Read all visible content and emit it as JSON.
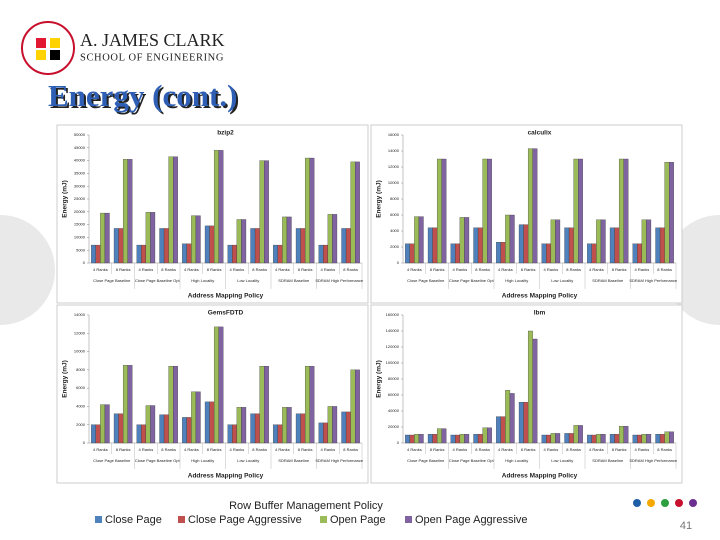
{
  "header": {
    "line1": "A. JAMES CLARK",
    "line2": "SCHOOL OF ENGINEERING"
  },
  "title": "Energy (cont.)",
  "legend": {
    "title": "Row Buffer Management Policy",
    "entries": [
      {
        "name": "Close Page",
        "color": "#4f81bd"
      },
      {
        "name": "Close Page Aggressive",
        "color": "#c0504d"
      },
      {
        "name": "Open Page",
        "color": "#9bbb59"
      },
      {
        "name": "Open Page Aggressive",
        "color": "#8064a2"
      }
    ]
  },
  "page_number": "41",
  "chart_data": [
    {
      "type": "bar",
      "title": "bzip2",
      "x_label": "Address Mapping Policy",
      "y_label": "Energy (mJ)",
      "categories": [
        "4 Ranks",
        "8 Ranks",
        "4 Ranks",
        "8 Ranks",
        "4 Ranks",
        "8 Ranks",
        "4 Ranks",
        "8 Ranks",
        "4 Ranks",
        "8 Ranks",
        "4 Ranks",
        "8 Ranks"
      ],
      "groups": [
        "Close Page Baseline",
        "Close Page Baseline Opt",
        "High Locality",
        "Low Locality",
        "SDRAM Baseline",
        "SDRAM High Performance"
      ],
      "ylim": [
        0,
        50000
      ],
      "yticks": [
        0,
        5000,
        10000,
        15000,
        20000,
        25000,
        30000,
        35000,
        40000,
        45000,
        50000
      ],
      "grid": false,
      "series": [
        {
          "values": [
            7000,
            13500,
            7000,
            13500,
            7500,
            14500,
            7000,
            13500,
            7000,
            13500,
            7000,
            13500
          ]
        },
        {
          "values": [
            7000,
            13500,
            7000,
            13500,
            7500,
            14500,
            7000,
            13500,
            7000,
            13500,
            7000,
            13500
          ]
        },
        {
          "values": [
            19500,
            40500,
            19800,
            41500,
            18500,
            44000,
            17000,
            40000,
            18000,
            41000,
            19000,
            39500
          ]
        },
        {
          "values": [
            19500,
            40500,
            19800,
            41500,
            18500,
            44000,
            17000,
            40000,
            18000,
            41000,
            19000,
            39500
          ]
        }
      ]
    },
    {
      "type": "bar",
      "title": "calculix",
      "x_label": "Address Mapping Policy",
      "y_label": "Energy (mJ)",
      "categories": [
        "4 Ranks",
        "8 Ranks",
        "4 Ranks",
        "8 Ranks",
        "4 Ranks",
        "8 Ranks",
        "4 Ranks",
        "8 Ranks",
        "4 Ranks",
        "8 Ranks",
        "4 Ranks",
        "8 Ranks"
      ],
      "groups": [
        "Close Page Baseline",
        "Close Page Baseline Opt",
        "High Locality",
        "Low Locality",
        "SDRAM Baseline",
        "SDRAM High Performance"
      ],
      "ylim": [
        0,
        16000
      ],
      "yticks": [
        0,
        2000,
        4000,
        6000,
        8000,
        10000,
        12000,
        14000,
        16000
      ],
      "grid": false,
      "series": [
        {
          "values": [
            2400,
            4400,
            2400,
            4400,
            2600,
            4800,
            2400,
            4400,
            2400,
            4400,
            2400,
            4400
          ]
        },
        {
          "values": [
            2400,
            4400,
            2400,
            4400,
            2600,
            4800,
            2400,
            4400,
            2400,
            4400,
            2400,
            4400
          ]
        },
        {
          "values": [
            5800,
            13000,
            5700,
            13000,
            6000,
            14300,
            5400,
            13000,
            5400,
            13000,
            5400,
            12600
          ]
        },
        {
          "values": [
            5800,
            13000,
            5700,
            13000,
            6000,
            14300,
            5400,
            13000,
            5400,
            13000,
            5400,
            12600
          ]
        }
      ]
    },
    {
      "type": "bar",
      "title": "GemsFDTD",
      "x_label": "Address Mapping Policy",
      "y_label": "Energy (mJ)",
      "categories": [
        "4 Ranks",
        "8 Ranks",
        "4 Ranks",
        "8 Ranks",
        "4 Ranks",
        "8 Ranks",
        "4 Ranks",
        "8 Ranks",
        "4 Ranks",
        "8 Ranks",
        "4 Ranks",
        "8 Ranks"
      ],
      "groups": [
        "Close Page Baseline",
        "Close Page Baseline Opt",
        "High Locality",
        "Low Locality",
        "SDRAM Baseline",
        "SDRAM High Performance"
      ],
      "ylim": [
        0,
        14000
      ],
      "yticks": [
        0,
        2000,
        4000,
        6000,
        8000,
        10000,
        12000,
        14000
      ],
      "grid": false,
      "series": [
        {
          "values": [
            2000,
            3200,
            2000,
            3100,
            2800,
            4500,
            2000,
            3200,
            2000,
            3200,
            2200,
            3400
          ]
        },
        {
          "values": [
            2000,
            3200,
            2000,
            3100,
            2800,
            4500,
            2000,
            3200,
            2000,
            3200,
            2200,
            3400
          ]
        },
        {
          "values": [
            4200,
            8500,
            4100,
            8400,
            5600,
            12700,
            3900,
            8400,
            3900,
            8400,
            4000,
            8000
          ]
        },
        {
          "values": [
            4200,
            8500,
            4100,
            8400,
            5600,
            12700,
            3900,
            8400,
            3900,
            8400,
            4000,
            8000
          ]
        }
      ]
    },
    {
      "type": "bar",
      "title": "lbm",
      "x_label": "Address Mapping Policy",
      "y_label": "Energy (mJ)",
      "categories": [
        "4 Ranks",
        "8 Ranks",
        "4 Ranks",
        "8 Ranks",
        "4 Ranks",
        "8 Ranks",
        "4 Ranks",
        "8 Ranks",
        "4 Ranks",
        "8 Ranks",
        "4 Ranks",
        "8 Ranks"
      ],
      "groups": [
        "Close Page Baseline",
        "Close Page Baseline Opt",
        "High Locality",
        "Low Locality",
        "SDRAM Baseline",
        "SDRAM High Performance"
      ],
      "ylim": [
        0,
        160000
      ],
      "yticks": [
        0,
        20000,
        40000,
        60000,
        80000,
        100000,
        120000,
        140000,
        160000
      ],
      "grid": false,
      "series": [
        {
          "values": [
            10000,
            11000,
            10000,
            11000,
            33000,
            51000,
            10000,
            12000,
            10000,
            11000,
            10000,
            11000
          ]
        },
        {
          "values": [
            10000,
            11000,
            10000,
            11000,
            33000,
            51000,
            10000,
            12000,
            10000,
            11000,
            10000,
            11000
          ]
        },
        {
          "values": [
            11000,
            18000,
            11000,
            19000,
            66000,
            140000,
            12000,
            22000,
            11000,
            21000,
            11000,
            14000
          ]
        },
        {
          "values": [
            11000,
            18000,
            11000,
            19000,
            62000,
            130000,
            12000,
            22000,
            11000,
            21000,
            11000,
            14000
          ]
        }
      ]
    }
  ]
}
